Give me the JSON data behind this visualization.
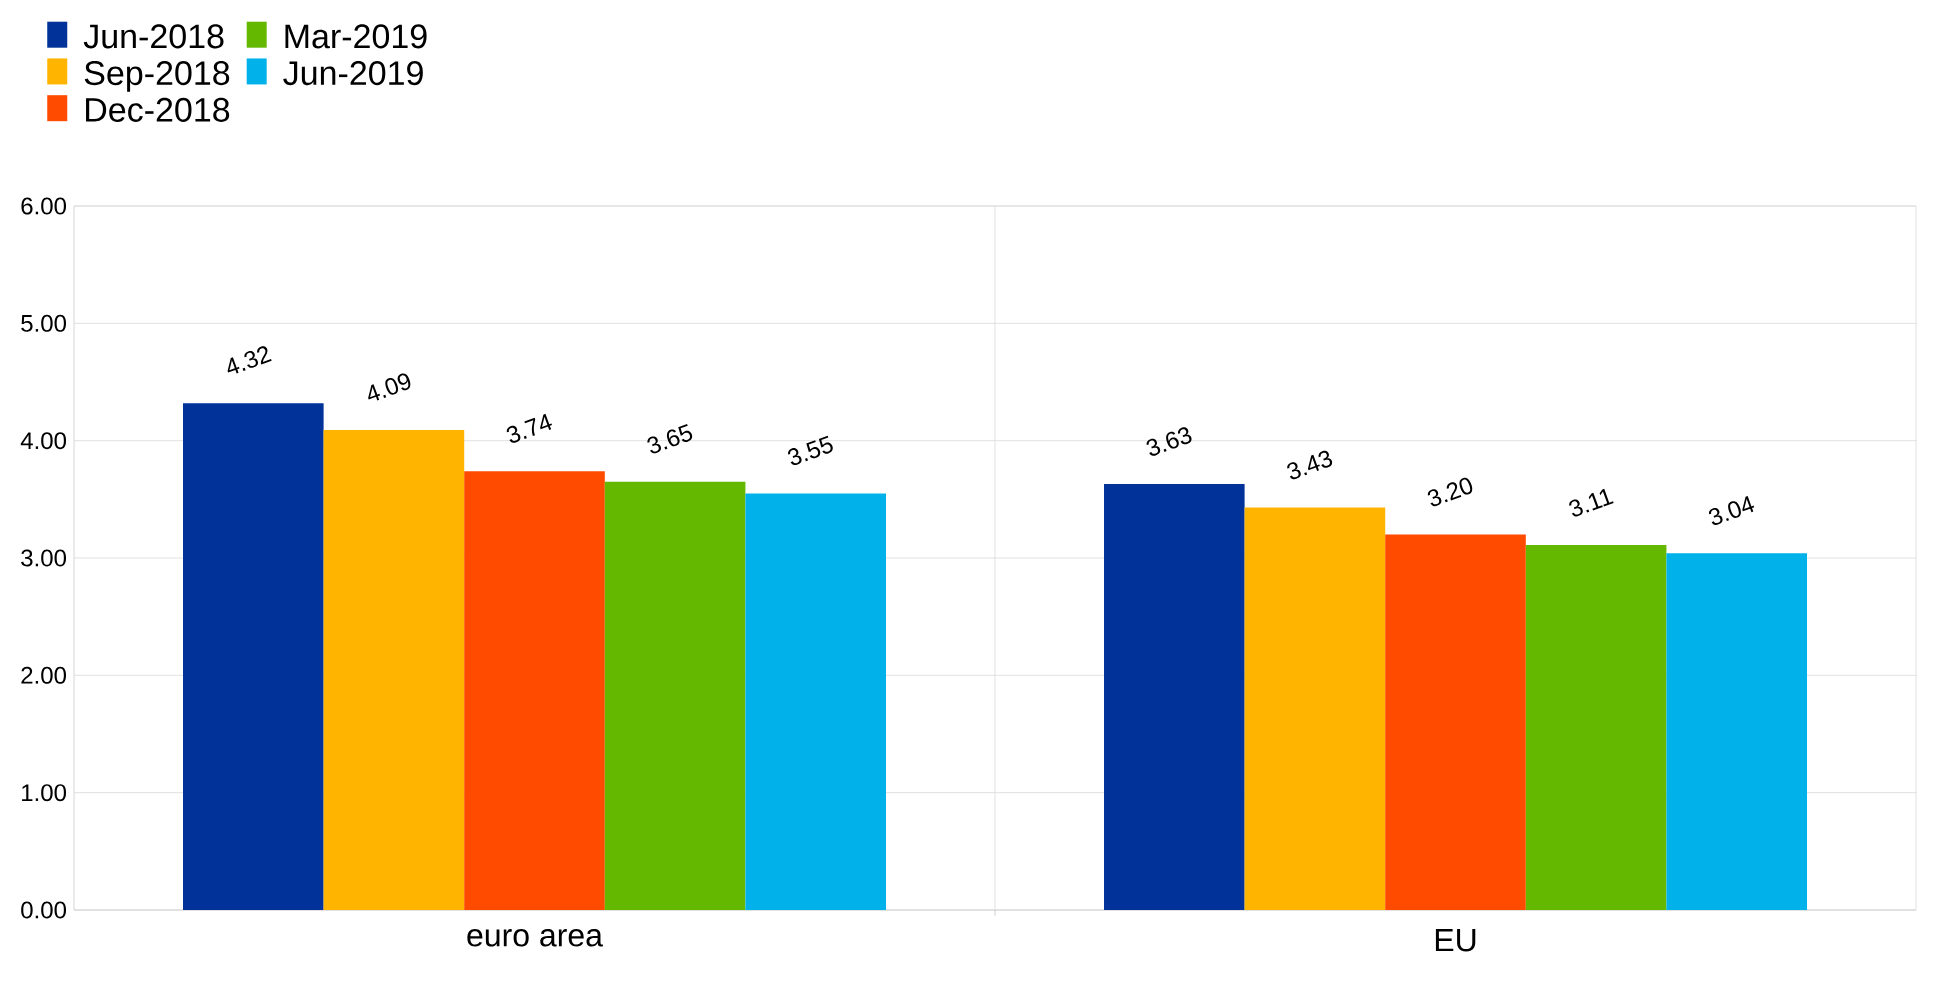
{
  "chart_data": {
    "type": "bar",
    "categories": [
      "euro area",
      "EU"
    ],
    "series": [
      {
        "name": "Jun-2018",
        "color": "#003299",
        "values": [
          4.32,
          3.63
        ],
        "value_labels": [
          "4.32",
          "3.63"
        ]
      },
      {
        "name": "Sep-2018",
        "color": "#ffb400",
        "values": [
          4.09,
          3.43
        ],
        "value_labels": [
          "4.09",
          "3.43"
        ]
      },
      {
        "name": "Dec-2018",
        "color": "#ff4b00",
        "values": [
          3.74,
          3.2
        ],
        "value_labels": [
          "3.74",
          "3.20"
        ]
      },
      {
        "name": "Mar-2019",
        "color": "#65b800",
        "values": [
          3.65,
          3.11
        ],
        "value_labels": [
          "3.65",
          "3.11"
        ]
      },
      {
        "name": "Jun-2019",
        "color": "#00b1ea",
        "values": [
          3.55,
          3.04
        ],
        "value_labels": [
          "3.55",
          "3.04"
        ]
      }
    ],
    "ylim": [
      0,
      6
    ],
    "yticks": [
      {
        "value": 0,
        "label": "0.00"
      },
      {
        "value": 1,
        "label": "1.00"
      },
      {
        "value": 2,
        "label": "2.00"
      },
      {
        "value": 3,
        "label": "3.00"
      },
      {
        "value": 4,
        "label": "4.00"
      },
      {
        "value": 5,
        "label": "5.00"
      },
      {
        "value": 6,
        "label": "6.00"
      }
    ],
    "grid": "y",
    "legend": "top left"
  }
}
